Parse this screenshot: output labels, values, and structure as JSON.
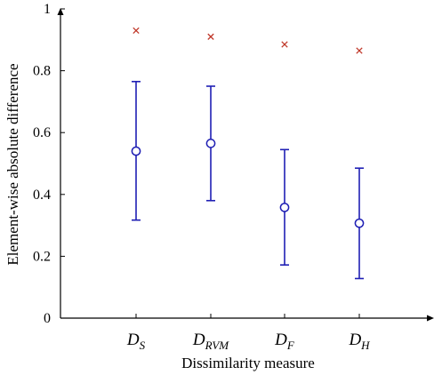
{
  "chart_data": {
    "type": "scatter",
    "title": "",
    "xlabel": "Dissimilarity measure",
    "ylabel": "Element-wise absolute difference",
    "ylim": [
      0,
      1
    ],
    "yticks": [
      "0",
      "0.2",
      "0.4",
      "0.6",
      "0.8",
      "1"
    ],
    "categories": [
      {
        "main": "D",
        "sub": "S"
      },
      {
        "main": "D",
        "sub": "RVM"
      },
      {
        "main": "D",
        "sub": "F"
      },
      {
        "main": "D",
        "sub": "H"
      }
    ],
    "series": [
      {
        "marker": "circle",
        "color": "#1f1fb4",
        "mean": [
          0.54,
          0.565,
          0.358,
          0.307
        ],
        "lower": [
          0.317,
          0.38,
          0.172,
          0.128
        ],
        "upper": [
          0.765,
          0.75,
          0.545,
          0.485
        ]
      },
      {
        "marker": "cross",
        "color": "#c0392b",
        "values": [
          0.93,
          0.91,
          0.885,
          0.865
        ]
      }
    ],
    "grid": false
  }
}
